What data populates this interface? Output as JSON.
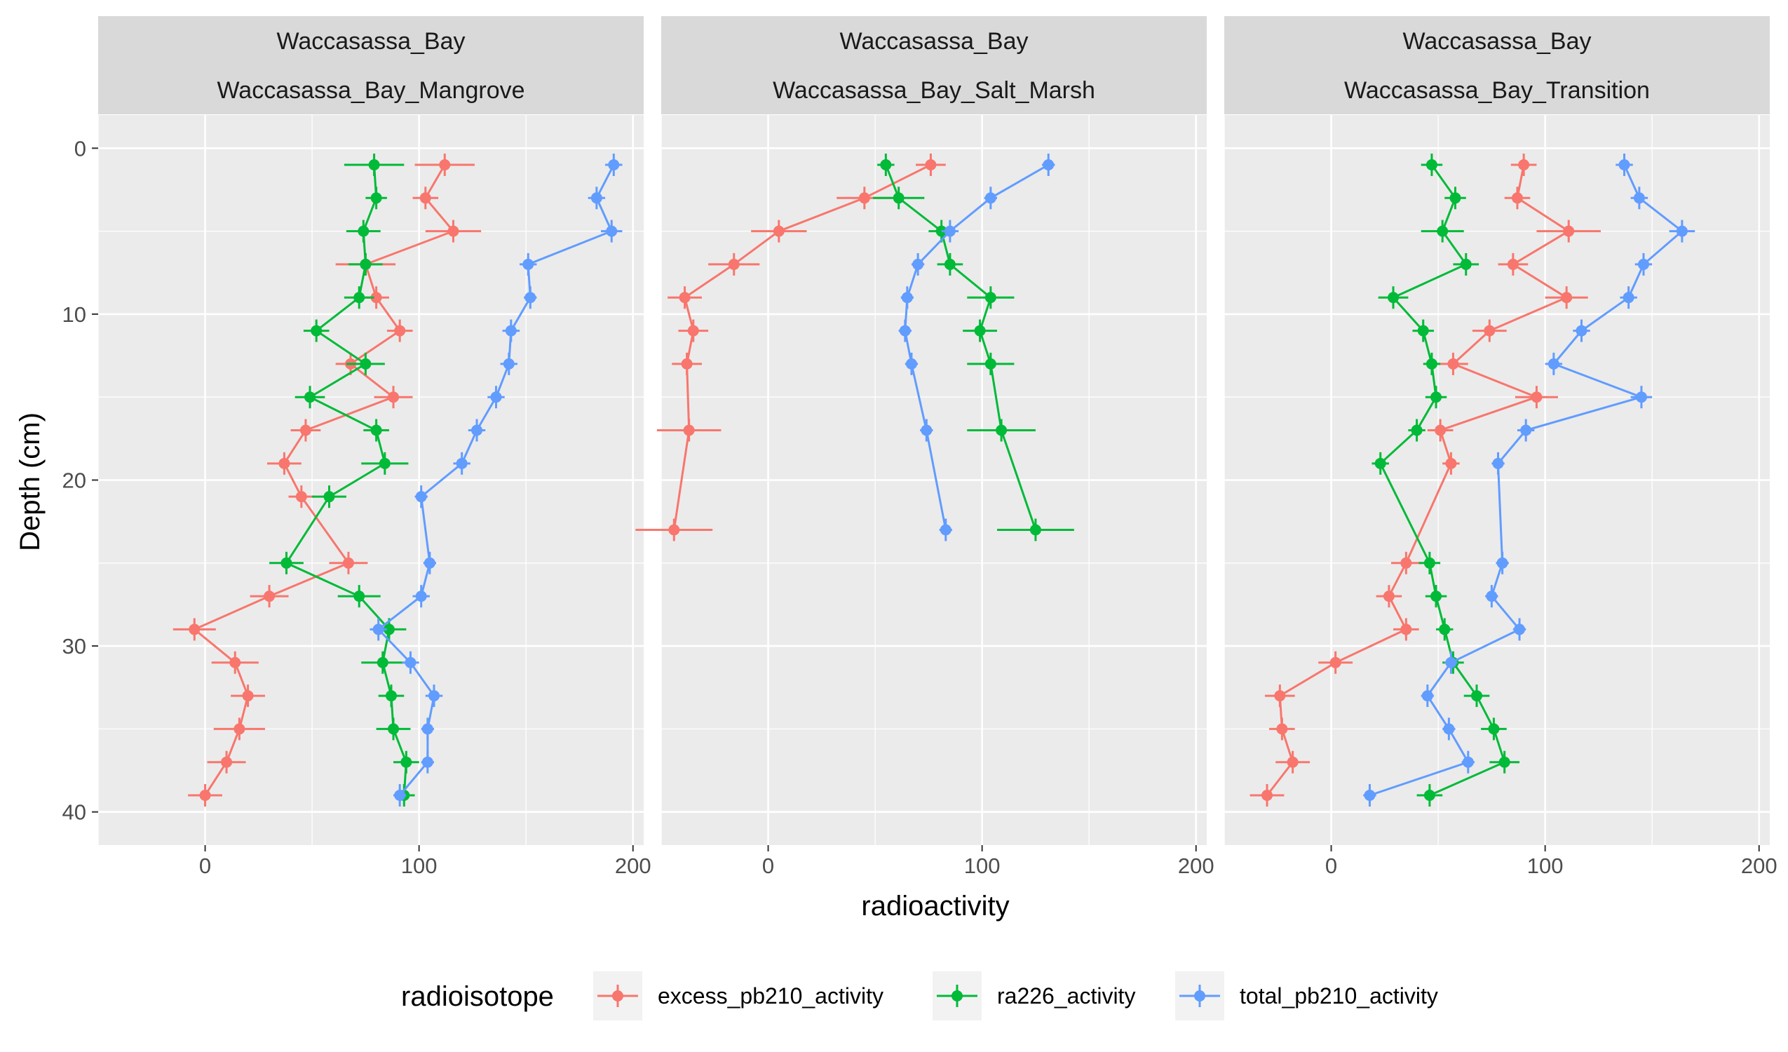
{
  "chart_data": {
    "type": "scatter",
    "xlabel": "radioactivity",
    "ylabel": "Depth (cm)",
    "xlim": [
      -50,
      205
    ],
    "ylim": [
      42,
      -2
    ],
    "x_ticks": [
      0,
      100,
      200
    ],
    "y_ticks": [
      0,
      10,
      20,
      30,
      40
    ],
    "grid": true,
    "legend": {
      "title": "radioisotope",
      "position": "bottom",
      "entries": [
        {
          "name": "excess_pb210_activity",
          "color": "#F8766D"
        },
        {
          "name": "ra226_activity",
          "color": "#00BA38"
        },
        {
          "name": "total_pb210_activity",
          "color": "#619CFF"
        }
      ]
    },
    "panels": [
      {
        "strip_top": "Waccasassa_Bay",
        "strip_bottom": "Waccasassa_Bay_Mangrove",
        "series": [
          {
            "name": "excess_pb210_activity",
            "color": "#F8766D",
            "points": [
              {
                "x": 112,
                "y": 1,
                "xerr": 14
              },
              {
                "x": 103,
                "y": 3,
                "xerr": 6
              },
              {
                "x": 116,
                "y": 5,
                "xerr": 13
              },
              {
                "x": 75,
                "y": 7,
                "xerr": 14
              },
              {
                "x": 80,
                "y": 9,
                "xerr": 6
              },
              {
                "x": 91,
                "y": 11,
                "xerr": 6
              },
              {
                "x": 68,
                "y": 13,
                "xerr": 7
              },
              {
                "x": 88,
                "y": 15,
                "xerr": 9
              },
              {
                "x": 47,
                "y": 17,
                "xerr": 7
              },
              {
                "x": 37,
                "y": 19,
                "xerr": 8
              },
              {
                "x": 45,
                "y": 21,
                "xerr": 6
              },
              {
                "x": 67,
                "y": 25,
                "xerr": 9
              },
              {
                "x": 30,
                "y": 27,
                "xerr": 9
              },
              {
                "x": -5,
                "y": 29,
                "xerr": 10
              },
              {
                "x": 14,
                "y": 31,
                "xerr": 11
              },
              {
                "x": 20,
                "y": 33,
                "xerr": 8
              },
              {
                "x": 16,
                "y": 35,
                "xerr": 12
              },
              {
                "x": 10,
                "y": 37,
                "xerr": 9
              },
              {
                "x": 0,
                "y": 39,
                "xerr": 8
              }
            ]
          },
          {
            "name": "ra226_activity",
            "color": "#00BA38",
            "points": [
              {
                "x": 79,
                "y": 1,
                "xerr": 14
              },
              {
                "x": 80,
                "y": 3,
                "xerr": 5
              },
              {
                "x": 74,
                "y": 5,
                "xerr": 8
              },
              {
                "x": 75,
                "y": 7,
                "xerr": 8
              },
              {
                "x": 72,
                "y": 9,
                "xerr": 7
              },
              {
                "x": 52,
                "y": 11,
                "xerr": 6
              },
              {
                "x": 75,
                "y": 13,
                "xerr": 9
              },
              {
                "x": 49,
                "y": 15,
                "xerr": 7
              },
              {
                "x": 80,
                "y": 17,
                "xerr": 6
              },
              {
                "x": 84,
                "y": 19,
                "xerr": 11
              },
              {
                "x": 58,
                "y": 21,
                "xerr": 8
              },
              {
                "x": 38,
                "y": 25,
                "xerr": 8
              },
              {
                "x": 72,
                "y": 27,
                "xerr": 10
              },
              {
                "x": 86,
                "y": 29,
                "xerr": 8
              },
              {
                "x": 83,
                "y": 31,
                "xerr": 10
              },
              {
                "x": 87,
                "y": 33,
                "xerr": 6
              },
              {
                "x": 88,
                "y": 35,
                "xerr": 8
              },
              {
                "x": 94,
                "y": 37,
                "xerr": 6
              },
              {
                "x": 93,
                "y": 39,
                "xerr": 5
              }
            ]
          },
          {
            "name": "total_pb210_activity",
            "color": "#619CFF",
            "points": [
              {
                "x": 191,
                "y": 1,
                "xerr": 4
              },
              {
                "x": 183,
                "y": 3,
                "xerr": 4
              },
              {
                "x": 190,
                "y": 5,
                "xerr": 5
              },
              {
                "x": 151,
                "y": 7,
                "xerr": 4
              },
              {
                "x": 152,
                "y": 9,
                "xerr": 3
              },
              {
                "x": 143,
                "y": 11,
                "xerr": 4
              },
              {
                "x": 142,
                "y": 13,
                "xerr": 4
              },
              {
                "x": 136,
                "y": 15,
                "xerr": 4
              },
              {
                "x": 127,
                "y": 17,
                "xerr": 4
              },
              {
                "x": 120,
                "y": 19,
                "xerr": 4
              },
              {
                "x": 101,
                "y": 21,
                "xerr": 3
              },
              {
                "x": 105,
                "y": 25,
                "xerr": 3
              },
              {
                "x": 101,
                "y": 27,
                "xerr": 4
              },
              {
                "x": 81,
                "y": 29,
                "xerr": 4
              },
              {
                "x": 96,
                "y": 31,
                "xerr": 4
              },
              {
                "x": 107,
                "y": 33,
                "xerr": 4
              },
              {
                "x": 104,
                "y": 35,
                "xerr": 3
              },
              {
                "x": 104,
                "y": 37,
                "xerr": 3
              },
              {
                "x": 91,
                "y": 39,
                "xerr": 3
              }
            ]
          }
        ]
      },
      {
        "strip_top": "Waccasassa_Bay",
        "strip_bottom": "Waccasassa_Bay_Salt_Marsh",
        "series": [
          {
            "name": "excess_pb210_activity",
            "color": "#F8766D",
            "points": [
              {
                "x": 76,
                "y": 1,
                "xerr": 7
              },
              {
                "x": 45,
                "y": 3,
                "xerr": 13
              },
              {
                "x": 5,
                "y": 5,
                "xerr": 13
              },
              {
                "x": -16,
                "y": 7,
                "xerr": 12
              },
              {
                "x": -39,
                "y": 9,
                "xerr": 8
              },
              {
                "x": -35,
                "y": 11,
                "xerr": 7
              },
              {
                "x": -38,
                "y": 13,
                "xerr": 7
              },
              {
                "x": -37,
                "y": 17,
                "xerr": 15
              },
              {
                "x": -44,
                "y": 23,
                "xerr": 18
              }
            ]
          },
          {
            "name": "ra226_activity",
            "color": "#00BA38",
            "points": [
              {
                "x": 55,
                "y": 1,
                "xerr": 4
              },
              {
                "x": 61,
                "y": 3,
                "xerr": 12
              },
              {
                "x": 81,
                "y": 5,
                "xerr": 6
              },
              {
                "x": 85,
                "y": 7,
                "xerr": 6
              },
              {
                "x": 104,
                "y": 9,
                "xerr": 11
              },
              {
                "x": 99,
                "y": 11,
                "xerr": 8
              },
              {
                "x": 104,
                "y": 13,
                "xerr": 11
              },
              {
                "x": 109,
                "y": 17,
                "xerr": 16
              },
              {
                "x": 125,
                "y": 23,
                "xerr": 18
              }
            ]
          },
          {
            "name": "total_pb210_activity",
            "color": "#619CFF",
            "points": [
              {
                "x": 131,
                "y": 1,
                "xerr": 3
              },
              {
                "x": 104,
                "y": 3,
                "xerr": 3
              },
              {
                "x": 85,
                "y": 5,
                "xerr": 4
              },
              {
                "x": 70,
                "y": 7,
                "xerr": 3
              },
              {
                "x": 65,
                "y": 9,
                "xerr": 3
              },
              {
                "x": 64,
                "y": 11,
                "xerr": 3
              },
              {
                "x": 67,
                "y": 13,
                "xerr": 3
              },
              {
                "x": 74,
                "y": 17,
                "xerr": 3
              },
              {
                "x": 83,
                "y": 23,
                "xerr": 3
              }
            ]
          }
        ]
      },
      {
        "strip_top": "Waccasassa_Bay",
        "strip_bottom": "Waccasassa_Bay_Transition",
        "series": [
          {
            "name": "excess_pb210_activity",
            "color": "#F8766D",
            "points": [
              {
                "x": 90,
                "y": 1,
                "xerr": 6
              },
              {
                "x": 87,
                "y": 3,
                "xerr": 6
              },
              {
                "x": 111,
                "y": 5,
                "xerr": 15
              },
              {
                "x": 85,
                "y": 7,
                "xerr": 7
              },
              {
                "x": 110,
                "y": 9,
                "xerr": 10
              },
              {
                "x": 74,
                "y": 11,
                "xerr": 8
              },
              {
                "x": 57,
                "y": 13,
                "xerr": 7
              },
              {
                "x": 96,
                "y": 15,
                "xerr": 10
              },
              {
                "x": 51,
                "y": 17,
                "xerr": 6
              },
              {
                "x": 56,
                "y": 19,
                "xerr": 4
              },
              {
                "x": 35,
                "y": 25,
                "xerr": 7
              },
              {
                "x": 27,
                "y": 27,
                "xerr": 6
              },
              {
                "x": 35,
                "y": 29,
                "xerr": 6
              },
              {
                "x": 2,
                "y": 31,
                "xerr": 8
              },
              {
                "x": -24,
                "y": 33,
                "xerr": 7
              },
              {
                "x": -23,
                "y": 35,
                "xerr": 6
              },
              {
                "x": -18,
                "y": 37,
                "xerr": 8
              },
              {
                "x": -30,
                "y": 39,
                "xerr": 8
              }
            ]
          },
          {
            "name": "ra226_activity",
            "color": "#00BA38",
            "points": [
              {
                "x": 47,
                "y": 1,
                "xerr": 5
              },
              {
                "x": 58,
                "y": 3,
                "xerr": 5
              },
              {
                "x": 52,
                "y": 5,
                "xerr": 10
              },
              {
                "x": 63,
                "y": 7,
                "xerr": 6
              },
              {
                "x": 29,
                "y": 9,
                "xerr": 7
              },
              {
                "x": 43,
                "y": 11,
                "xerr": 5
              },
              {
                "x": 47,
                "y": 13,
                "xerr": 4
              },
              {
                "x": 49,
                "y": 15,
                "xerr": 5
              },
              {
                "x": 40,
                "y": 17,
                "xerr": 4
              },
              {
                "x": 23,
                "y": 19,
                "xerr": 4
              },
              {
                "x": 46,
                "y": 25,
                "xerr": 5
              },
              {
                "x": 49,
                "y": 27,
                "xerr": 5
              },
              {
                "x": 53,
                "y": 29,
                "xerr": 4
              },
              {
                "x": 57,
                "y": 31,
                "xerr": 5
              },
              {
                "x": 68,
                "y": 33,
                "xerr": 6
              },
              {
                "x": 76,
                "y": 35,
                "xerr": 6
              },
              {
                "x": 81,
                "y": 37,
                "xerr": 7
              },
              {
                "x": 46,
                "y": 39,
                "xerr": 6
              }
            ]
          },
          {
            "name": "total_pb210_activity",
            "color": "#619CFF",
            "points": [
              {
                "x": 137,
                "y": 1,
                "xerr": 4
              },
              {
                "x": 144,
                "y": 3,
                "xerr": 4
              },
              {
                "x": 164,
                "y": 5,
                "xerr": 6
              },
              {
                "x": 146,
                "y": 7,
                "xerr": 4
              },
              {
                "x": 139,
                "y": 9,
                "xerr": 4
              },
              {
                "x": 117,
                "y": 11,
                "xerr": 4
              },
              {
                "x": 104,
                "y": 13,
                "xerr": 4
              },
              {
                "x": 145,
                "y": 15,
                "xerr": 5
              },
              {
                "x": 91,
                "y": 17,
                "xerr": 4
              },
              {
                "x": 78,
                "y": 19,
                "xerr": 3
              },
              {
                "x": 80,
                "y": 25,
                "xerr": 3
              },
              {
                "x": 75,
                "y": 27,
                "xerr": 3
              },
              {
                "x": 88,
                "y": 29,
                "xerr": 3
              },
              {
                "x": 56,
                "y": 31,
                "xerr": 3
              },
              {
                "x": 45,
                "y": 33,
                "xerr": 3
              },
              {
                "x": 55,
                "y": 35,
                "xerr": 3
              },
              {
                "x": 64,
                "y": 37,
                "xerr": 3
              },
              {
                "x": 18,
                "y": 39,
                "xerr": 3
              }
            ]
          }
        ]
      }
    ]
  }
}
